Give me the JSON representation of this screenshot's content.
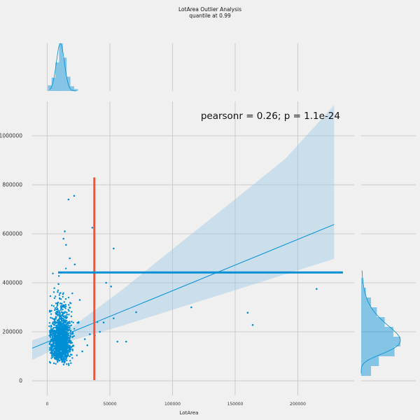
{
  "chart_data": {
    "type": "scatter",
    "title": "LotArea Outlier Analysis",
    "subtitle": "quantile at 0.99",
    "xlabel": "LotArea",
    "ylabel": "",
    "annotation": "pearsonr = 0.26; p = 1.1e-24",
    "xlim": [
      -12000,
      245000
    ],
    "ylim": [
      -60000,
      1140000
    ],
    "x_ticks": [
      0,
      50000,
      100000,
      150000,
      200000
    ],
    "y_ticks": [
      0,
      200000,
      400000,
      600000,
      800000,
      1000000
    ],
    "x_tick_labels": [
      "0",
      "50000",
      "100000",
      "150000",
      "200000"
    ],
    "y_tick_labels": [
      "0",
      "200000",
      "400000",
      "600000",
      "800000",
      "1000000"
    ],
    "grid": true,
    "colors": {
      "points": "#008fd5",
      "vline": "#fc4f30",
      "hline": "#008fd5",
      "ci_band": "#9cc7e6"
    },
    "quantile_vline_x": 37600,
    "quantile_vline_ymax": 830000,
    "quantile_hline_y": 442000,
    "quantile_hline_xmax": 236000,
    "regression": {
      "x": [
        -12000,
        229000
      ],
      "y": [
        133000,
        638000
      ]
    },
    "confidence_band": {
      "x": [
        -12000,
        20000,
        60000,
        100000,
        150000,
        190000,
        229000
      ],
      "upper": [
        165000,
        220000,
        372000,
        537000,
        741000,
        906000,
        1125000
      ],
      "lower": [
        85000,
        165000,
        225000,
        290000,
        370000,
        435000,
        498000
      ]
    },
    "outliers": [
      {
        "x": 17000,
        "y": 740000
      },
      {
        "x": 21500,
        "y": 755000
      },
      {
        "x": 36000,
        "y": 625000
      },
      {
        "x": 53000,
        "y": 540000
      },
      {
        "x": 47000,
        "y": 400000
      },
      {
        "x": 51000,
        "y": 385000
      },
      {
        "x": 53000,
        "y": 255000
      },
      {
        "x": 56000,
        "y": 160000
      },
      {
        "x": 63000,
        "y": 160000
      },
      {
        "x": 71000,
        "y": 280000
      },
      {
        "x": 115000,
        "y": 300000
      },
      {
        "x": 160000,
        "y": 278000
      },
      {
        "x": 164000,
        "y": 228000
      },
      {
        "x": 215000,
        "y": 375000
      },
      {
        "x": 40000,
        "y": 240000
      },
      {
        "x": 45000,
        "y": 238000
      },
      {
        "x": 42000,
        "y": 200000
      },
      {
        "x": 38000,
        "y": 185000
      },
      {
        "x": 34000,
        "y": 190000
      },
      {
        "x": 30000,
        "y": 170000
      },
      {
        "x": 25000,
        "y": 240000
      },
      {
        "x": 26000,
        "y": 330000
      },
      {
        "x": 22000,
        "y": 475000
      },
      {
        "x": 18000,
        "y": 500000
      },
      {
        "x": 14000,
        "y": 610000
      },
      {
        "x": 13000,
        "y": 580000
      },
      {
        "x": 15000,
        "y": 555000
      },
      {
        "x": 9000,
        "y": 395000
      },
      {
        "x": 28000,
        "y": 120000
      },
      {
        "x": 32000,
        "y": 145000
      }
    ],
    "cluster": {
      "x_center": 11000,
      "x_spread": 4000,
      "y_median": 165000,
      "count": 1400
    },
    "marginal_x_hist": {
      "bins": [
        2000,
        5000,
        8000,
        11000,
        14000,
        17000,
        20000,
        23000
      ],
      "density": [
        0.12,
        0.28,
        0.6,
        1.0,
        0.7,
        0.3,
        0.1,
        0.04
      ]
    },
    "marginal_y_hist": {
      "bins": [
        40000,
        80000,
        120000,
        160000,
        200000,
        240000,
        280000,
        320000,
        360000,
        400000
      ],
      "density": [
        0.25,
        0.45,
        0.85,
        1.0,
        0.82,
        0.6,
        0.4,
        0.25,
        0.12,
        0.05
      ]
    }
  }
}
